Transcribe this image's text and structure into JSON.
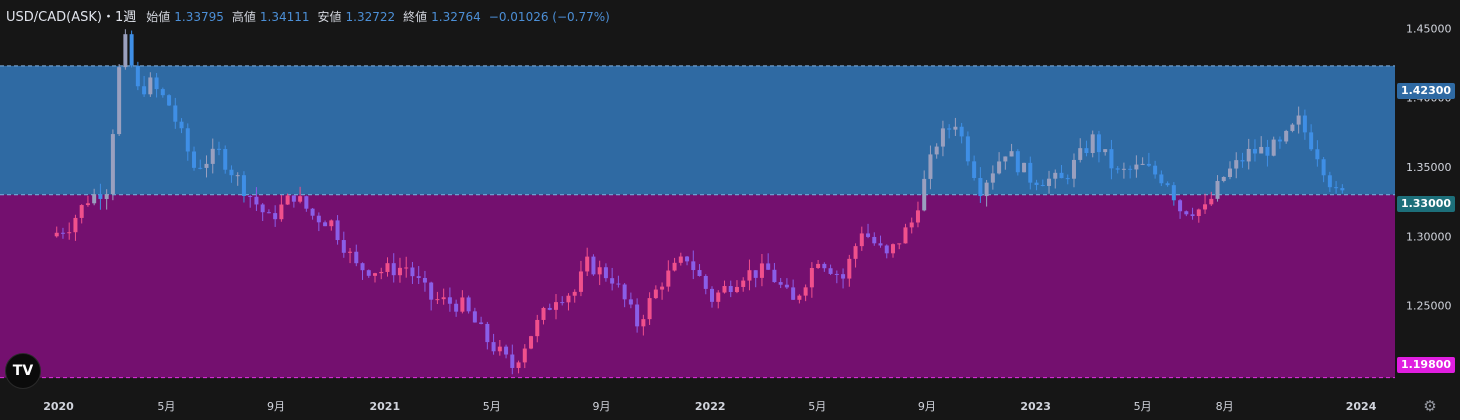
{
  "legend": {
    "symbol": "USD/CAD(ASK)・1週",
    "open_label": "始値",
    "open": "1.33795",
    "high_label": "高値",
    "high": "1.34111",
    "low_label": "安値",
    "low": "1.32722",
    "close_label": "終値",
    "close": "1.32764",
    "change": "−0.01026 (−0.77%)"
  },
  "badges": {
    "upper": "1.42300",
    "middle": "1.33000",
    "lower": "1.19800"
  },
  "logo_text": "TV",
  "icons": {
    "settings": "gear-icon",
    "logo": "tradingview-logo"
  },
  "colors": {
    "background": "#161616",
    "upper_zone": "#2f6aa3",
    "lower_zone": "#74106f",
    "candle_up": "#f0508c",
    "candle_down": "#8a5ee8",
    "candle_up_upper": "#9aa0bf",
    "candle_down_upper": "#3f8fe6",
    "accent_up": "#f07040",
    "badge_upper_bg": "#2f6aa3",
    "badge_middle_bg": "#1d6f7a",
    "badge_lower_bg": "#e01ee0"
  },
  "chart_data": {
    "type": "candlestick",
    "timeframe": "1週",
    "y_axis": {
      "ticks": [
        "1.45000",
        "1.40000",
        "1.35000",
        "1.30000",
        "1.25000"
      ],
      "ylim": [
        1.1855,
        1.4705
      ]
    },
    "x_axis": {
      "ticks": [
        {
          "label": "2020",
          "date": "2020-01"
        },
        {
          "label": "5月",
          "date": "2020-05"
        },
        {
          "label": "9月",
          "date": "2020-09"
        },
        {
          "label": "2021",
          "date": "2021-01"
        },
        {
          "label": "5月",
          "date": "2021-05"
        },
        {
          "label": "9月",
          "date": "2021-09"
        },
        {
          "label": "2022",
          "date": "2022-01"
        },
        {
          "label": "5月",
          "date": "2022-05"
        },
        {
          "label": "9月",
          "date": "2022-09"
        },
        {
          "label": "2023",
          "date": "2023-01"
        },
        {
          "label": "5月",
          "date": "2023-05"
        },
        {
          "label": "8月",
          "date": "2023-08"
        },
        {
          "label": "2024",
          "date": "2024-01"
        }
      ]
    },
    "levels": [
      1.423,
      1.33,
      1.198
    ],
    "zones": [
      {
        "from": 1.33,
        "to": 1.423,
        "color": "#2f6aa3"
      },
      {
        "from": 1.198,
        "to": 1.33,
        "color": "#74106f"
      }
    ],
    "anchors": [
      [
        "2019-12-30",
        1.3
      ],
      [
        "2020-01-20",
        1.308
      ],
      [
        "2020-02-10",
        1.327
      ],
      [
        "2020-03-02",
        1.335
      ],
      [
        "2020-03-16",
        1.42
      ],
      [
        "2020-03-23",
        1.44
      ],
      [
        "2020-04-06",
        1.405
      ],
      [
        "2020-04-20",
        1.41
      ],
      [
        "2020-05-11",
        1.395
      ],
      [
        "2020-06-08",
        1.35
      ],
      [
        "2020-07-06",
        1.36
      ],
      [
        "2020-08-03",
        1.335
      ],
      [
        "2020-08-31",
        1.312
      ],
      [
        "2020-09-28",
        1.33
      ],
      [
        "2020-10-19",
        1.315
      ],
      [
        "2020-11-09",
        1.31
      ],
      [
        "2020-12-07",
        1.278
      ],
      [
        "2021-01-04",
        1.275
      ],
      [
        "2021-02-01",
        1.278
      ],
      [
        "2021-03-01",
        1.255
      ],
      [
        "2021-04-05",
        1.25
      ],
      [
        "2021-05-03",
        1.225
      ],
      [
        "2021-05-31",
        1.206
      ],
      [
        "2021-06-21",
        1.23
      ],
      [
        "2021-07-19",
        1.257
      ],
      [
        "2021-08-09",
        1.26
      ],
      [
        "2021-08-23",
        1.28
      ],
      [
        "2021-09-20",
        1.27
      ],
      [
        "2021-10-18",
        1.237
      ],
      [
        "2021-11-15",
        1.268
      ],
      [
        "2021-12-13",
        1.285
      ],
      [
        "2022-01-10",
        1.255
      ],
      [
        "2022-02-14",
        1.273
      ],
      [
        "2022-03-14",
        1.275
      ],
      [
        "2022-04-11",
        1.252
      ],
      [
        "2022-05-09",
        1.285
      ],
      [
        "2022-06-06",
        1.27
      ],
      [
        "2022-06-27",
        1.305
      ],
      [
        "2022-07-25",
        1.285
      ],
      [
        "2022-08-22",
        1.31
      ],
      [
        "2022-09-19",
        1.368
      ],
      [
        "2022-10-10",
        1.383
      ],
      [
        "2022-11-07",
        1.335
      ],
      [
        "2022-12-05",
        1.362
      ],
      [
        "2023-01-02",
        1.342
      ],
      [
        "2023-02-06",
        1.34
      ],
      [
        "2023-03-13",
        1.37
      ],
      [
        "2023-04-10",
        1.345
      ],
      [
        "2023-05-08",
        1.35
      ],
      [
        "2023-06-05",
        1.34
      ],
      [
        "2023-06-19",
        1.32
      ],
      [
        "2023-07-17",
        1.319
      ],
      [
        "2023-08-07",
        1.343
      ],
      [
        "2023-09-04",
        1.36
      ],
      [
        "2023-10-09",
        1.365
      ],
      [
        "2023-10-30",
        1.383
      ],
      [
        "2023-11-20",
        1.36
      ],
      [
        "2023-12-11",
        1.33
      ]
    ]
  }
}
